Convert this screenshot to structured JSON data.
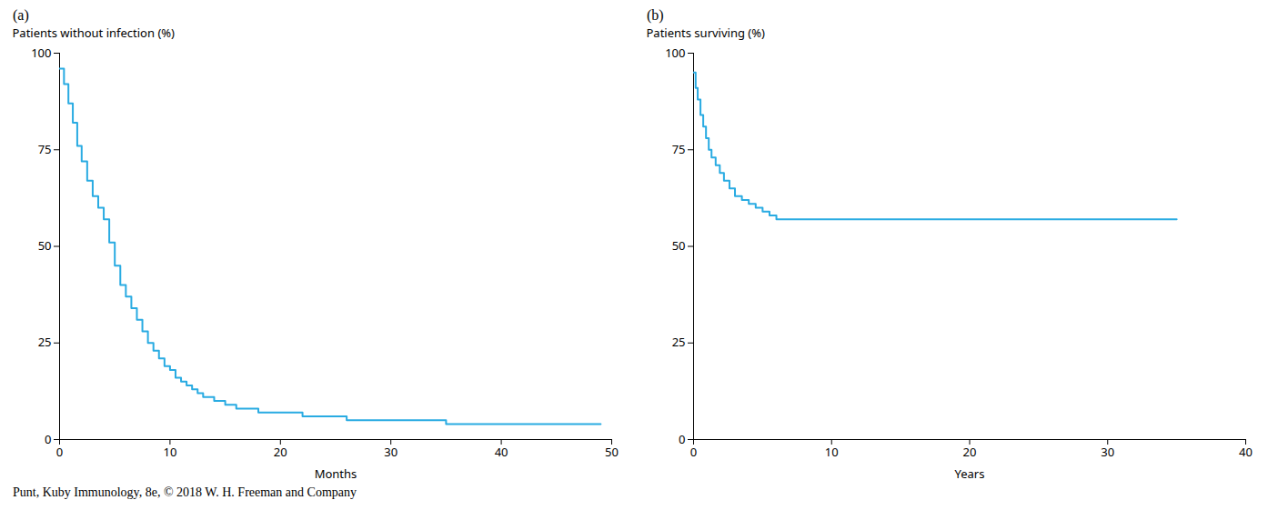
{
  "chart_data": [
    {
      "type": "step",
      "title": "(a)",
      "x_label": "Months",
      "y_label": "Patients without infection (%)",
      "x": [
        0,
        0.4,
        0.8,
        1.2,
        1.6,
        2.0,
        2.5,
        3.0,
        3.5,
        4.0,
        4.5,
        5.0,
        5.5,
        6.0,
        6.5,
        7.0,
        7.5,
        8.0,
        8.5,
        9.0,
        9.5,
        10.0,
        10.5,
        11.0,
        11.5,
        12.0,
        12.5,
        13.0,
        14.0,
        15.0,
        16.0,
        17.0,
        18.0,
        19.0,
        20.0,
        21.0,
        22.0,
        23.0,
        24.0,
        25.0,
        26.0,
        27.0,
        28.0,
        29.0,
        30.0,
        35.0,
        40.0,
        45.0,
        49.0
      ],
      "values": [
        96,
        92,
        87,
        82,
        76,
        72,
        67,
        63,
        60,
        57,
        51,
        45,
        40,
        37,
        34,
        31,
        28,
        25,
        23,
        21,
        19,
        18,
        16,
        15,
        14,
        13,
        12,
        11,
        10,
        9,
        8,
        8,
        7,
        7,
        7,
        7,
        6,
        6,
        6,
        6,
        5,
        5,
        5,
        5,
        5,
        4,
        4,
        4,
        4
      ],
      "color": "#29ABE2",
      "xlim": [
        0,
        50
      ],
      "ylim": [
        0,
        100
      ],
      "xticks": [
        0,
        10,
        20,
        30,
        40,
        50
      ],
      "yticks": [
        0,
        25,
        50,
        75,
        100
      ]
    },
    {
      "type": "step",
      "title": "(b)",
      "x_label": "Years",
      "y_label": "Patients surviving (%)",
      "x": [
        0,
        0.15,
        0.3,
        0.5,
        0.7,
        0.9,
        1.1,
        1.3,
        1.6,
        1.9,
        2.2,
        2.6,
        3.0,
        3.5,
        4.0,
        4.5,
        5.0,
        5.5,
        6.0,
        6.5,
        7.0,
        7.5,
        8.0,
        35.0
      ],
      "values": [
        95,
        91,
        88,
        84,
        81,
        78,
        75,
        73,
        71,
        69,
        67,
        65,
        63,
        62,
        61,
        60,
        59,
        58,
        57,
        57,
        57,
        57,
        57,
        57
      ],
      "color": "#29ABE2",
      "xlim": [
        0,
        40
      ],
      "ylim": [
        0,
        100
      ],
      "xticks": [
        0,
        10,
        20,
        30,
        40
      ],
      "yticks": [
        0,
        25,
        50,
        75,
        100
      ]
    }
  ],
  "caption": "Punt, Kuby Immunology, 8e, © 2018 W. H. Freeman and Company"
}
